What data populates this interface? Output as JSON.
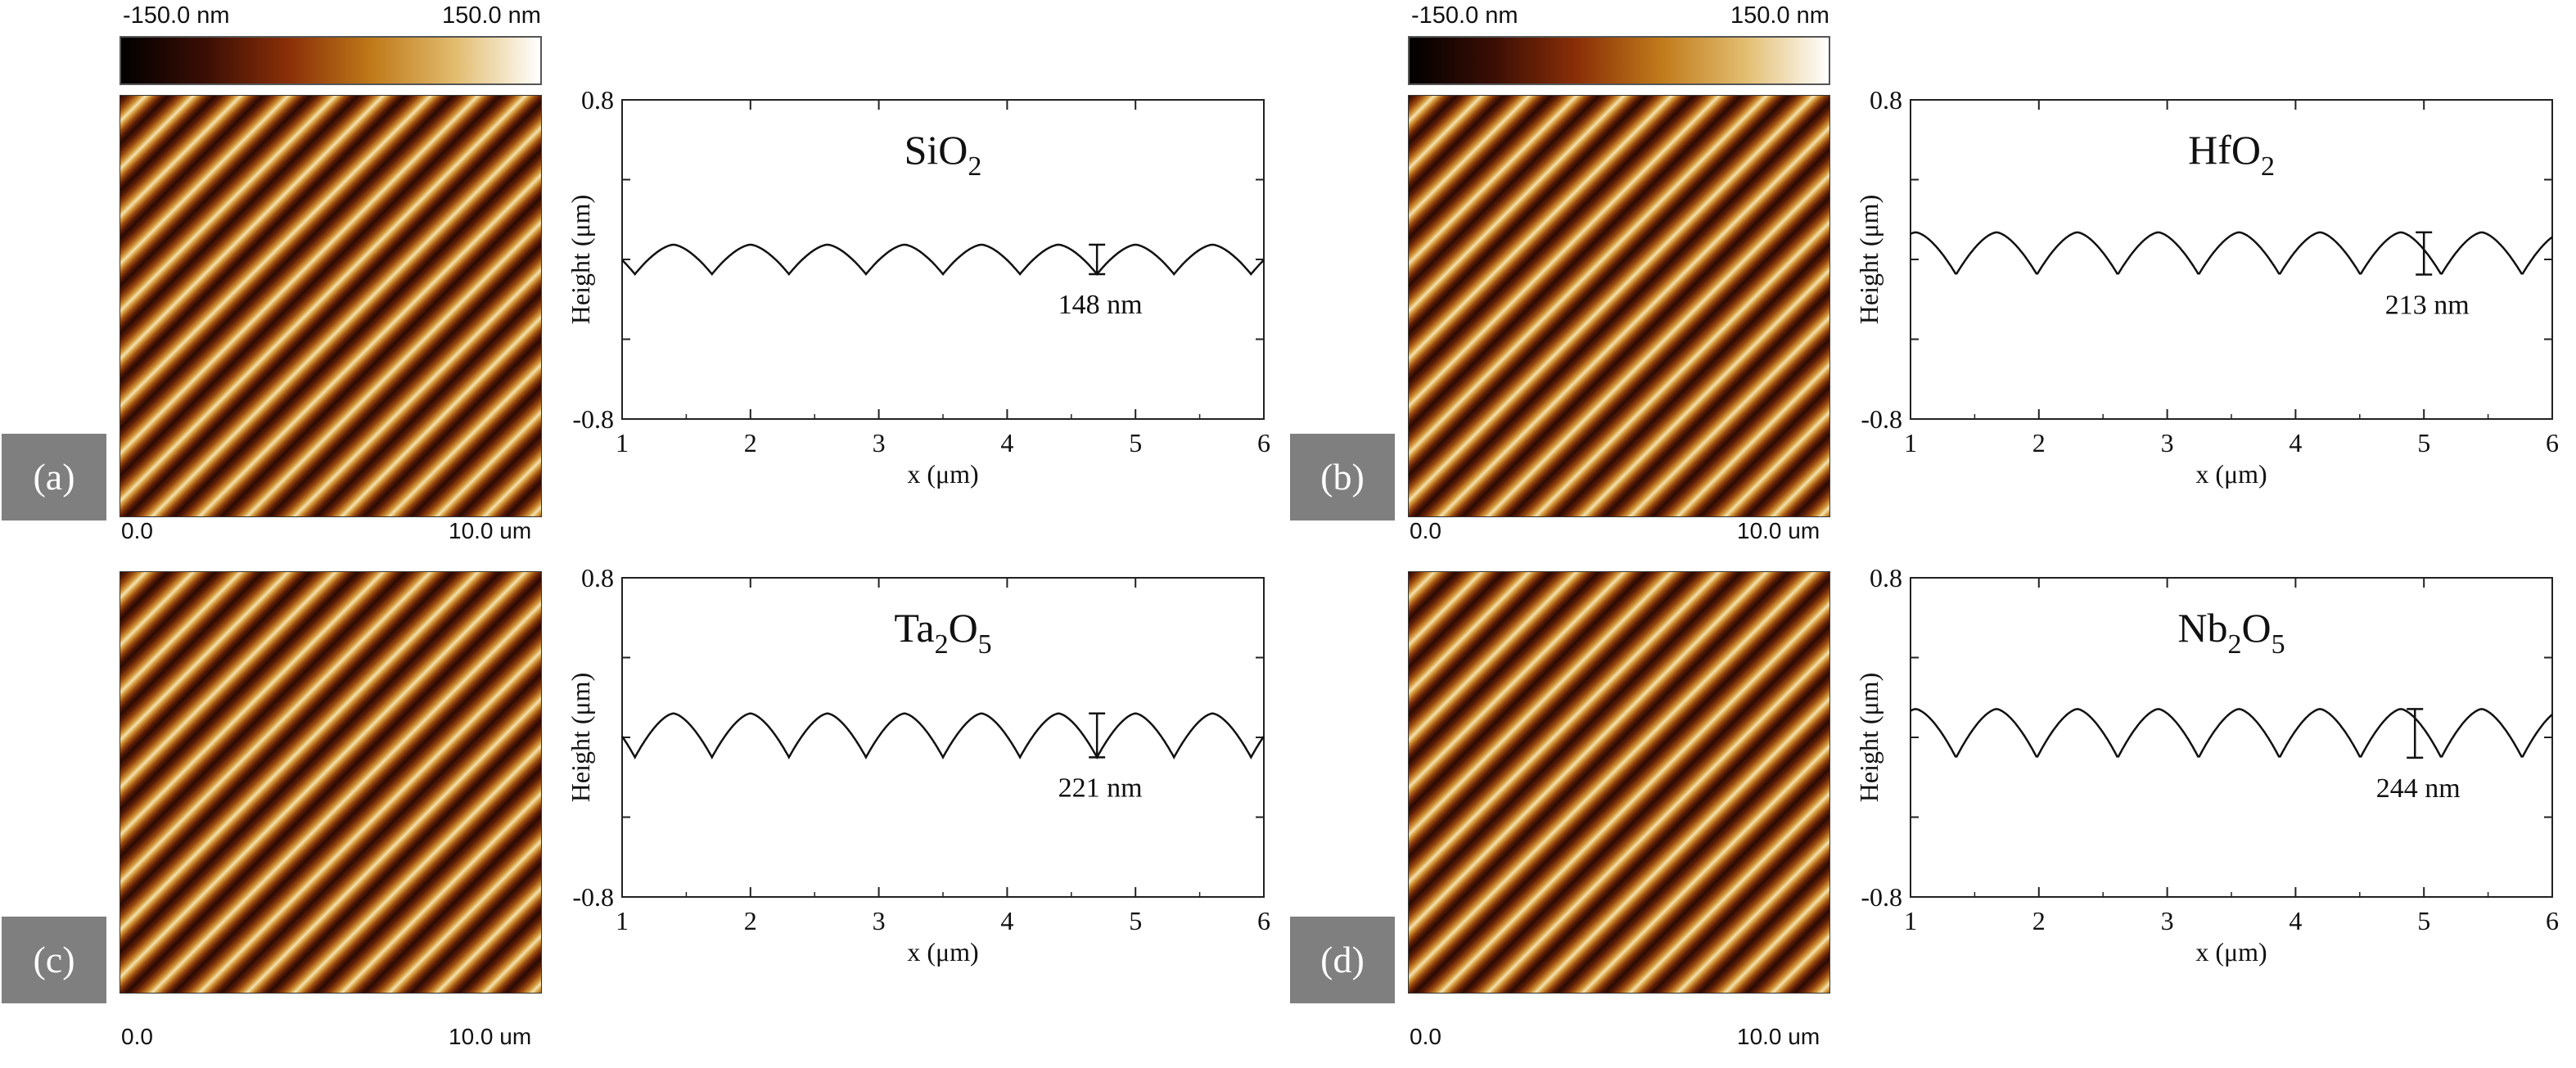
{
  "colorbar": {
    "min_label": "-150.0 nm",
    "max_label": "150.0 nm",
    "stops": [
      "#000000",
      "#3a0e05",
      "#8a2f08",
      "#c07a1a",
      "#e2bd70",
      "#ffffff"
    ]
  },
  "afm_axis": {
    "start_label": "0.0",
    "end_label": "10.0 um"
  },
  "chart_data": [
    {
      "type": "line",
      "panel": "(a)",
      "title_main": "SiO",
      "title_sub": "2",
      "xlabel": "x (μm)",
      "ylabel": "Height (μm)",
      "xlim": [
        1,
        6
      ],
      "ylim": [
        -0.8,
        0.8
      ],
      "xticks": [
        "1",
        "2",
        "3",
        "4",
        "5",
        "6"
      ],
      "yticks": [
        "0.8",
        "-0.8"
      ],
      "wave": {
        "period_um": 0.6,
        "first_peak_um": 1.4,
        "amplitude_um": 0.074,
        "offset_um": 0.0
      },
      "marker": {
        "x_um": 4.7,
        "label": "148 nm"
      }
    },
    {
      "type": "line",
      "panel": "(b)",
      "title_main": "HfO",
      "title_sub": "2",
      "xlabel": "x (μm)",
      "ylabel": "Height (μm)",
      "xlim": [
        1,
        6
      ],
      "ylim": [
        -0.8,
        0.8
      ],
      "xticks": [
        "1",
        "2",
        "3",
        "4",
        "5",
        "6"
      ],
      "yticks": [
        "0.8",
        "-0.8"
      ],
      "wave": {
        "period_um": 0.63,
        "first_peak_um": 1.04,
        "amplitude_um": 0.106,
        "offset_um": 0.03
      },
      "marker": {
        "x_um": 5.0,
        "label": "213 nm"
      }
    },
    {
      "type": "line",
      "panel": "(c)",
      "title_main": "Ta",
      "title_sub": "2",
      "title_main2": "O",
      "title_sub2": "5",
      "xlabel": "x (μm)",
      "ylabel": "Height (μm)",
      "xlim": [
        1,
        6
      ],
      "ylim": [
        -0.8,
        0.8
      ],
      "xticks": [
        "1",
        "2",
        "3",
        "4",
        "5",
        "6"
      ],
      "yticks": [
        "0.8",
        "-0.8"
      ],
      "wave": {
        "period_um": 0.6,
        "first_peak_um": 1.4,
        "amplitude_um": 0.11,
        "offset_um": 0.01
      },
      "marker": {
        "x_um": 4.7,
        "label": "221 nm"
      }
    },
    {
      "type": "line",
      "panel": "(d)",
      "title_main": "Nb",
      "title_sub": "2",
      "title_main2": "O",
      "title_sub2": "5",
      "xlabel": "x (μm)",
      "ylabel": "Height (μm)",
      "xlim": [
        1,
        6
      ],
      "ylim": [
        -0.8,
        0.8
      ],
      "xticks": [
        "1",
        "2",
        "3",
        "4",
        "5",
        "6"
      ],
      "yticks": [
        "0.8",
        "-0.8"
      ],
      "wave": {
        "period_um": 0.63,
        "first_peak_um": 1.04,
        "amplitude_um": 0.122,
        "offset_um": 0.02
      },
      "marker": {
        "x_um": 4.93,
        "label": "244 nm"
      }
    }
  ]
}
